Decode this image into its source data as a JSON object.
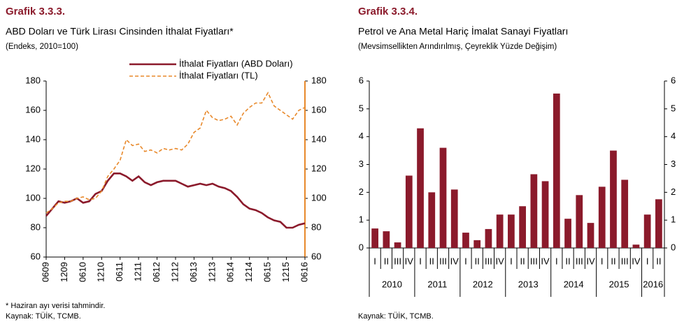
{
  "chart_data": [
    {
      "type": "line",
      "title": "Grafik 3.3.3.",
      "subtitle": "ABD Doları ve Türk Lirası Cinsinden İthalat Fiyatları*",
      "caption": "(Endeks, 2010=100)",
      "notes": [
        "* Haziran ayı verisi tahmindir.",
        "Kaynak: TÜİK, TCMB."
      ],
      "categories": [
        "0609",
        null,
        null,
        "1209",
        null,
        null,
        "0610",
        null,
        null,
        "1210",
        null,
        null,
        "0611",
        null,
        null,
        "1211",
        null,
        null,
        "0612",
        null,
        null,
        "1212",
        null,
        null,
        "0613",
        null,
        null,
        "1213",
        null,
        null,
        "0614",
        null,
        null,
        "1214",
        null,
        null,
        "0615",
        null,
        null,
        "1215",
        null,
        null,
        "0616"
      ],
      "series": [
        {
          "name": "İthalat Fiyatları (ABD Doları)",
          "color": "#8b1a2b",
          "values": [
            88,
            93,
            98,
            97,
            98,
            100,
            97,
            98,
            103,
            105,
            112,
            117,
            117,
            115,
            112,
            115,
            111,
            109,
            111,
            112,
            112,
            112,
            110,
            108,
            109,
            110,
            109,
            110,
            108,
            107,
            105,
            101,
            96,
            93,
            92,
            90,
            87,
            85,
            84,
            80,
            80,
            82,
            83
          ]
        },
        {
          "name": "İthalat Fiyatları (TL)",
          "color": "#e8892b",
          "dashed": true,
          "values": [
            90,
            93,
            97,
            98,
            98,
            100,
            101,
            99,
            100,
            105,
            115,
            120,
            126,
            140,
            136,
            137,
            132,
            133,
            131,
            134,
            133,
            134,
            133,
            137,
            145,
            148,
            160,
            155,
            153,
            154,
            156,
            150,
            158,
            162,
            165,
            165,
            172,
            163,
            160,
            157,
            154,
            160,
            162
          ]
        }
      ],
      "ylim": [
        60,
        180
      ],
      "yticks": [
        60,
        80,
        100,
        120,
        140,
        160,
        180
      ],
      "y2lim": [
        60,
        180
      ],
      "y2ticks": [
        60,
        80,
        100,
        120,
        140,
        160,
        180
      ],
      "y2_axis_color": "#e8892b",
      "grid": false,
      "legend": "top"
    },
    {
      "type": "bar",
      "title": "Grafik 3.3.4.",
      "subtitle": "Petrol ve Ana Metal Hariç İmalat Sanayi Fiyatları",
      "caption": "(Mevsimsellikten Arındırılmış, Çeyreklik Yüzde Değişim)",
      "notes": [
        "Kaynak: TÜİK, TCMB."
      ],
      "categories": [
        "I",
        "II",
        "III",
        "IV",
        "I",
        "II",
        "III",
        "IV",
        "I",
        "II",
        "III",
        "IV",
        "I",
        "II",
        "III",
        "IV",
        "I",
        "II",
        "III",
        "IV",
        "I",
        "II",
        "III",
        "IV",
        "I",
        "II"
      ],
      "groups": [
        "2010",
        "2011",
        "2012",
        "2013",
        "2014",
        "2015",
        "2016"
      ],
      "values": [
        0.7,
        0.6,
        0.2,
        2.6,
        4.3,
        2.0,
        3.6,
        2.1,
        0.55,
        0.28,
        0.68,
        1.2,
        1.2,
        1.5,
        2.65,
        2.4,
        5.55,
        1.05,
        1.9,
        0.9,
        2.2,
        3.5,
        2.45,
        0.12,
        1.2,
        1.75
      ],
      "color": "#8b1a2b",
      "ylim": [
        0,
        6
      ],
      "yticks": [
        0,
        1,
        2,
        3,
        4,
        5,
        6
      ],
      "y2lim": [
        0,
        6
      ],
      "y2ticks": [
        0,
        1,
        2,
        3,
        4,
        5,
        6
      ],
      "grid": false
    }
  ]
}
